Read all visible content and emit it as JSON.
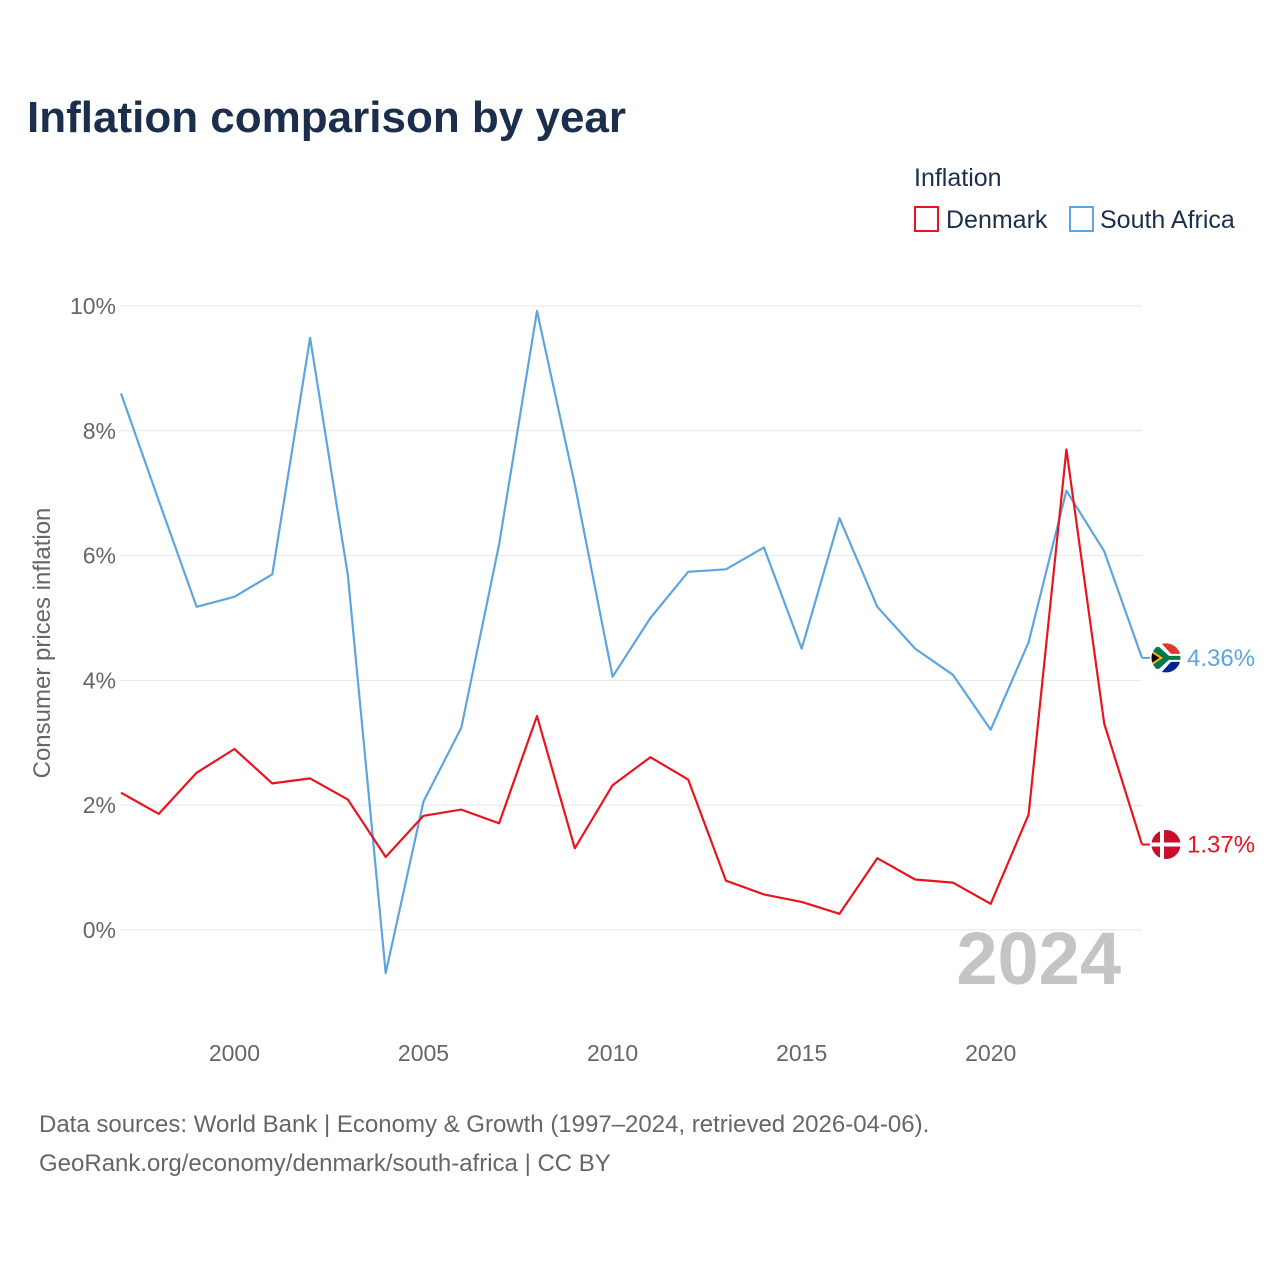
{
  "chart_data": {
    "type": "line",
    "title": "Inflation comparison by year",
    "legend_title": "Inflation",
    "legend_position": "top-right",
    "ylabel": "Consumer prices inflation",
    "xlabel": "",
    "ylim": [
      -1.3,
      10.3
    ],
    "xlim": [
      1997,
      2024
    ],
    "y_ticks": [
      0,
      2,
      4,
      6,
      8,
      10
    ],
    "y_tick_labels": [
      "0%",
      "2%",
      "4%",
      "6%",
      "8%",
      "10%"
    ],
    "x_ticks": [
      2000,
      2005,
      2010,
      2015,
      2020
    ],
    "x_tick_labels": [
      "2000",
      "2005",
      "2010",
      "2015",
      "2020"
    ],
    "grid": true,
    "x": [
      1997,
      1998,
      1999,
      2000,
      2001,
      2002,
      2003,
      2004,
      2005,
      2006,
      2007,
      2008,
      2009,
      2010,
      2011,
      2012,
      2013,
      2014,
      2015,
      2016,
      2017,
      2018,
      2019,
      2020,
      2021,
      2022,
      2023,
      2024
    ],
    "series": [
      {
        "name": "Denmark",
        "color": "#e8141e",
        "values": [
          2.2,
          1.86,
          2.52,
          2.9,
          2.35,
          2.43,
          2.09,
          1.17,
          1.83,
          1.93,
          1.71,
          3.43,
          1.31,
          2.32,
          2.77,
          2.41,
          0.79,
          0.57,
          0.45,
          0.26,
          1.15,
          0.81,
          0.76,
          0.42,
          1.85,
          7.7,
          3.31,
          1.37
        ],
        "end_label": "1.37%",
        "flag": "denmark-flag-icon"
      },
      {
        "name": "South Africa",
        "color": "#5ea5e0",
        "values": [
          8.6,
          6.88,
          5.18,
          5.34,
          5.7,
          9.49,
          5.68,
          -0.69,
          2.06,
          3.24,
          6.18,
          9.92,
          7.14,
          4.06,
          5.0,
          5.74,
          5.78,
          6.13,
          4.51,
          6.6,
          5.18,
          4.51,
          4.09,
          3.21,
          4.61,
          7.04,
          6.07,
          4.36
        ],
        "end_label": "4.36%",
        "flag": "south-africa-flag-icon"
      }
    ],
    "annotation_year": "2024"
  },
  "footer": {
    "source_line": "Data sources: World Bank | Economy & Growth (1997–2024, retrieved 2026-04-06).",
    "url_line": "GeoRank.org/economy/denmark/south-africa | CC BY"
  },
  "colors": {
    "title": "#1b2f4d",
    "denmark": "#e8141e",
    "south_africa": "#5ea5e0",
    "grid": "#e6e6e6",
    "tick": "#666666",
    "watermark": "#c4c4c4"
  }
}
